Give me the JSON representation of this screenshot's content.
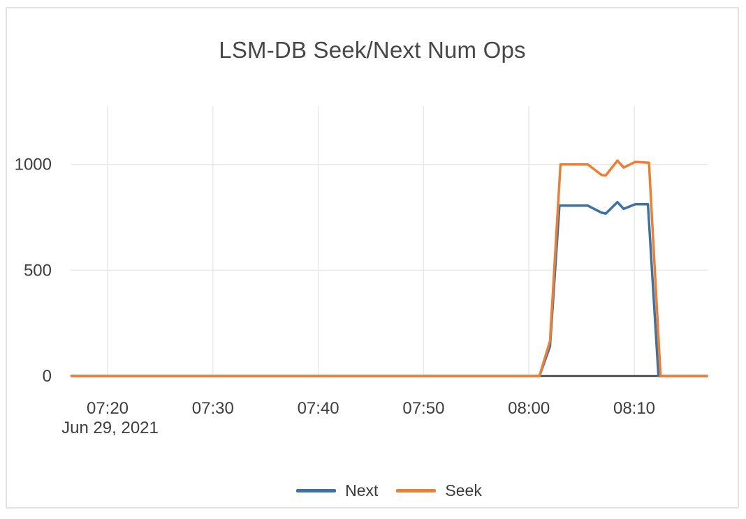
{
  "window": {
    "background_color": "#ffffff",
    "border_color": "#e2e2e2"
  },
  "chart_data": {
    "type": "line",
    "title": "LSM-DB Seek/Next Num Ops",
    "x_axis": {
      "date_label": "Jun 29, 2021",
      "tick_labels": [
        "07:20",
        "07:30",
        "07:40",
        "07:50",
        "08:00",
        "08:10"
      ],
      "tick_minutes": [
        20,
        30,
        40,
        50,
        60,
        70
      ],
      "x_unit": "minutes after 07:00, Jun 29 2021",
      "range_minutes": [
        16.5,
        77.0
      ],
      "grid": true
    },
    "y_axis": {
      "tick_labels": [
        "0",
        "500",
        "1000"
      ],
      "tick_values": [
        0,
        500,
        1000
      ],
      "range": [
        0,
        1280
      ],
      "grid": true,
      "zeroline": true
    },
    "legend": {
      "position": "bottom-center",
      "entries": [
        "Next",
        "Seek"
      ]
    },
    "series": [
      {
        "name": "Next",
        "color": "#3b72a6",
        "points": [
          [
            16.5,
            0
          ],
          [
            61.0,
            0
          ],
          [
            62.0,
            140
          ],
          [
            62.9,
            805
          ],
          [
            65.6,
            805
          ],
          [
            66.9,
            772
          ],
          [
            67.3,
            768
          ],
          [
            68.4,
            822
          ],
          [
            69.0,
            790
          ],
          [
            70.1,
            812
          ],
          [
            71.3,
            812
          ],
          [
            72.3,
            0
          ],
          [
            77.0,
            0
          ]
        ]
      },
      {
        "name": "Seek",
        "color": "#ee7f32",
        "points": [
          [
            16.5,
            0
          ],
          [
            61.0,
            0
          ],
          [
            62.0,
            165
          ],
          [
            63.0,
            1000
          ],
          [
            65.6,
            1000
          ],
          [
            66.9,
            950
          ],
          [
            67.3,
            948
          ],
          [
            68.4,
            1018
          ],
          [
            69.0,
            985
          ],
          [
            70.1,
            1012
          ],
          [
            71.4,
            1008
          ],
          [
            72.5,
            0
          ],
          [
            77.0,
            0
          ]
        ]
      }
    ],
    "styles": {
      "grid_color": "#e9e9e9",
      "zeroline_color": "#3c3c3c",
      "tick_text_color": "#3e3e3e",
      "title_color": "#474747",
      "line_width": 3.5
    }
  }
}
